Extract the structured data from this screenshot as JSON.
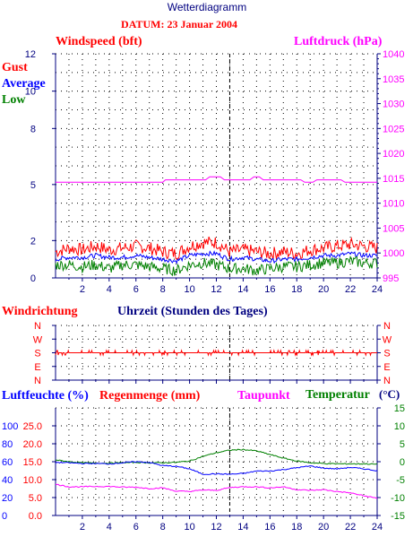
{
  "header": {
    "title": "Wetterdiagramm",
    "date_line": "DATUM: 23 Januar 2004"
  },
  "colors": {
    "red": "#ff0000",
    "blue": "#0000ff",
    "green": "#008000",
    "magenta": "#ff00ff",
    "navy": "#000080",
    "title": "#000080"
  },
  "chart_data": [
    {
      "type": "line",
      "id": "wind",
      "title_left": "Windspeed (bft)",
      "title_right": "Luftdruck (hPa)",
      "legend": [
        "Gust",
        "Average",
        "Low"
      ],
      "left_ticks": [
        "0",
        "2",
        "5",
        "8",
        "10",
        "12"
      ],
      "right_ticks": [
        "995",
        "1000",
        "1005",
        "1010",
        "1015",
        "1020",
        "1025",
        "1030",
        "1035",
        "1040"
      ],
      "x_ticks": [
        "2",
        "4",
        "6",
        "8",
        "10",
        "12",
        "14",
        "16",
        "18",
        "20",
        "22",
        "24"
      ],
      "xlim": [
        0,
        24
      ],
      "ylim_left": [
        0,
        12
      ],
      "ylim_right": [
        995,
        1040
      ],
      "current_time": 13,
      "series": [
        {
          "name": "Gust",
          "color": "#ff0000",
          "x": [
            0,
            1,
            2,
            3,
            4,
            5,
            6,
            7,
            8,
            9,
            10,
            11,
            12,
            13,
            14,
            15,
            16,
            17,
            18,
            19,
            20,
            21,
            22,
            23,
            24
          ],
          "y": [
            1.4,
            1.6,
            1.5,
            1.7,
            1.5,
            1.6,
            1.7,
            1.6,
            1.4,
            1.3,
            1.7,
            1.9,
            1.9,
            1.4,
            1.5,
            1.4,
            1.3,
            1.4,
            1.3,
            1.5,
            1.6,
            1.7,
            1.8,
            1.7,
            1.6
          ]
        },
        {
          "name": "Average",
          "color": "#0000ff",
          "x": [
            0,
            1,
            2,
            3,
            4,
            5,
            6,
            7,
            8,
            9,
            10,
            11,
            12,
            13,
            14,
            15,
            16,
            17,
            18,
            19,
            20,
            21,
            22,
            23,
            24
          ],
          "y": [
            1.0,
            1.1,
            1.1,
            1.2,
            1.1,
            1.1,
            1.2,
            1.1,
            1.0,
            0.9,
            1.2,
            1.3,
            1.3,
            1.0,
            1.1,
            1.0,
            0.9,
            1.0,
            1.0,
            1.1,
            1.2,
            1.2,
            1.3,
            1.2,
            1.2
          ]
        },
        {
          "name": "Low",
          "color": "#008000",
          "x": [
            0,
            1,
            2,
            3,
            4,
            5,
            6,
            7,
            8,
            9,
            10,
            11,
            12,
            13,
            14,
            15,
            16,
            17,
            18,
            19,
            20,
            21,
            22,
            23,
            24
          ],
          "y": [
            0.7,
            0.7,
            0.6,
            0.7,
            0.5,
            0.7,
            0.7,
            0.6,
            0.5,
            0.4,
            0.7,
            0.8,
            0.7,
            0.5,
            0.5,
            0.4,
            0.5,
            0.6,
            0.6,
            0.7,
            0.8,
            0.8,
            0.9,
            0.8,
            0.8
          ]
        },
        {
          "name": "Luftdruck",
          "color": "#ff00ff",
          "axis": "right",
          "x": [
            0,
            8,
            8.2,
            11.2,
            11.5,
            12.3,
            12.6,
            14.5,
            14.8,
            15.2,
            15.5,
            18.3,
            18.6,
            19.2,
            19.5,
            21.3,
            21.6,
            24
          ],
          "y": [
            1014.2,
            1014.2,
            1014.7,
            1014.7,
            1015.3,
            1015.3,
            1014.7,
            1014.7,
            1015.3,
            1015.3,
            1014.7,
            1014.7,
            1014.2,
            1014.2,
            1014.7,
            1014.7,
            1014.2,
            1014.2
          ]
        }
      ]
    },
    {
      "type": "line",
      "id": "direction",
      "title_left": "Windrichtung",
      "xlabel": "Uhrzeit (Stunden des Tages)",
      "y_ticks": [
        "N",
        "W",
        "S",
        "E",
        "N"
      ],
      "xlim": [
        0,
        24
      ],
      "current_time": 13,
      "series": [
        {
          "name": "Windrichtung",
          "color": "#ff0000",
          "x": [
            0,
            24
          ],
          "y": [
            180,
            180
          ]
        }
      ]
    },
    {
      "type": "line",
      "id": "climate",
      "labels": {
        "humidity": "Luftfeuchte (%)",
        "rain": "Regenmenge (mm)",
        "dewpoint": "Taupunkt",
        "temperature": "Temperatur",
        "temp_unit": "(°C)"
      },
      "left_ticks_humidity": [
        "0",
        "20",
        "40",
        "60",
        "80",
        "100"
      ],
      "left_ticks_rain": [
        "0.0",
        "5.0",
        "10.0",
        "15.0",
        "20.0",
        "25.0"
      ],
      "right_ticks": [
        "-15",
        "-10",
        "-5",
        "0",
        "5",
        "10",
        "15"
      ],
      "x_ticks": [
        "2",
        "4",
        "6",
        "8",
        "10",
        "12",
        "14",
        "16",
        "18",
        "20",
        "22",
        "24"
      ],
      "xlim": [
        0,
        24
      ],
      "ylim_right": [
        -15,
        15
      ],
      "current_time": 13,
      "series": [
        {
          "name": "Temperatur",
          "color": "#008000",
          "x": [
            0,
            1,
            2,
            3,
            4,
            5,
            6,
            7,
            8,
            9,
            10,
            11,
            12,
            13,
            14,
            15,
            16,
            17,
            18,
            19,
            20,
            21,
            22,
            23,
            24
          ],
          "y": [
            0.5,
            0,
            -0.3,
            -0.4,
            -0.4,
            -0.3,
            -0.2,
            -0.3,
            -0.3,
            -0.2,
            0.2,
            1.5,
            2.5,
            3.2,
            3.4,
            3,
            2,
            1,
            0.2,
            -0.3,
            -0.5,
            -0.6,
            -0.6,
            -0.6,
            -0.7
          ]
        },
        {
          "name": "Luftfeuchte",
          "color": "#0000ff",
          "x": [
            0,
            1,
            2,
            3,
            4,
            5,
            6,
            7,
            8,
            9,
            10,
            11,
            12,
            13,
            14,
            15,
            16,
            17,
            18,
            19,
            20,
            21,
            22,
            23,
            24
          ],
          "y": [
            -0.2,
            -0.3,
            -0.5,
            -0.5,
            -0.6,
            -0.3,
            0,
            -0.2,
            -1.1,
            -1.3,
            -2,
            -3.5,
            -3.4,
            -3.5,
            -3.3,
            -2.6,
            -2.6,
            -2.2,
            -1.7,
            -1.2,
            -1.8,
            -2,
            -1.6,
            -2,
            -2.5
          ]
        },
        {
          "name": "Taupunkt",
          "color": "#ff00ff",
          "x": [
            0,
            1,
            2,
            3,
            4,
            5,
            6,
            7,
            8,
            9,
            10,
            11,
            12,
            13,
            14,
            15,
            16,
            17,
            18,
            19,
            20,
            21,
            22,
            23,
            24
          ],
          "y": [
            -6.3,
            -7,
            -7,
            -6.9,
            -6.9,
            -7.1,
            -7.1,
            -7.5,
            -7.3,
            -8.2,
            -8.3,
            -7.9,
            -8,
            -7.2,
            -7,
            -7,
            -7.3,
            -7,
            -7.8,
            -8,
            -7.8,
            -8.3,
            -8.7,
            -9.5,
            -10.2
          ]
        }
      ]
    }
  ]
}
